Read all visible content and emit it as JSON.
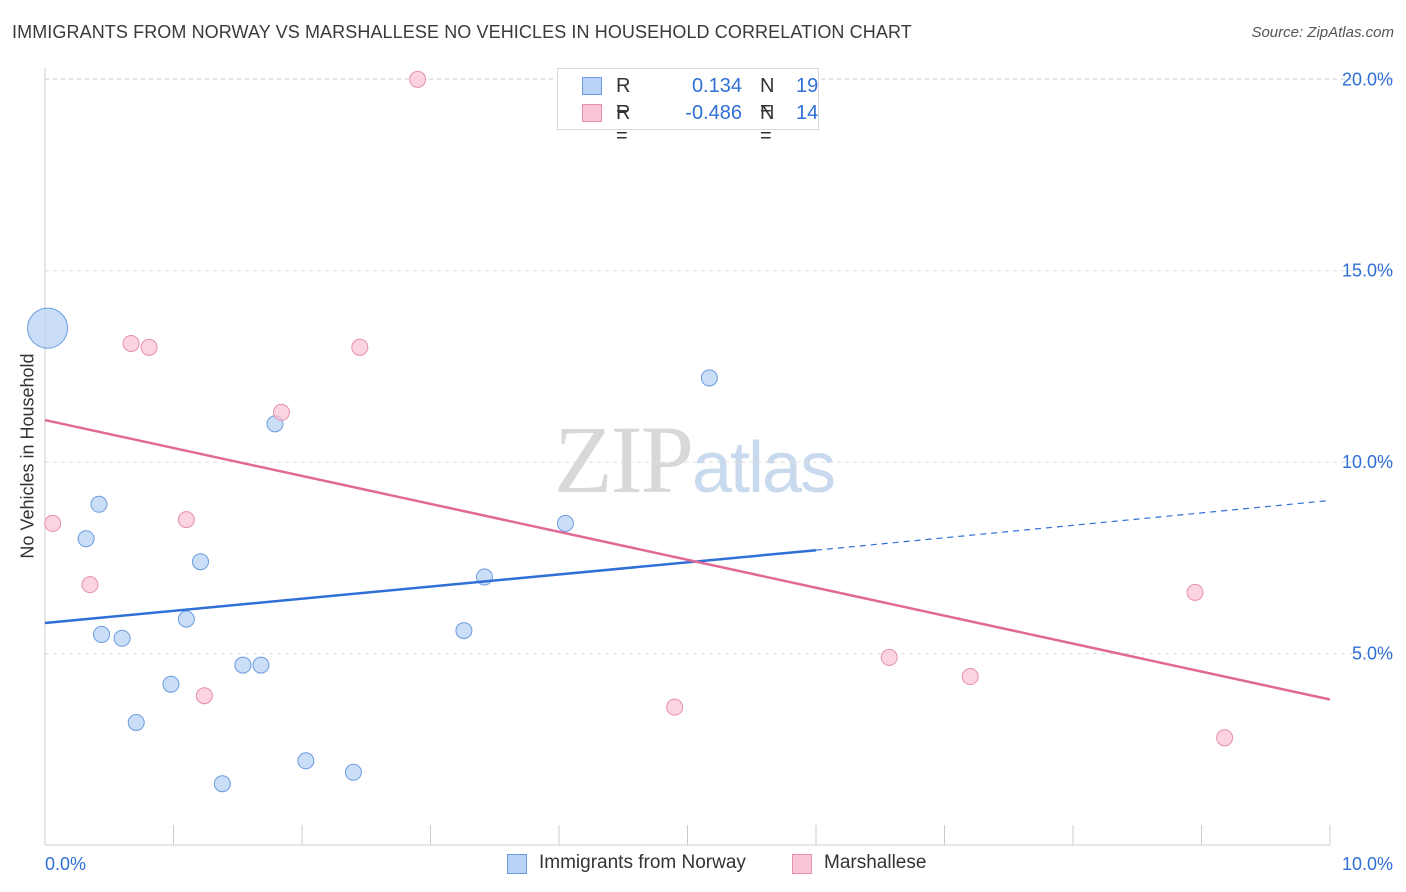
{
  "header": {
    "title": "IMMIGRANTS FROM NORWAY VS MARSHALLESE NO VEHICLES IN HOUSEHOLD CORRELATION CHART",
    "source": "Source: ZipAtlas.com"
  },
  "watermark": {
    "zip": "ZIP",
    "atlas": "atlas"
  },
  "legend": {
    "rows": [
      {
        "r_label": "R =",
        "r_value": "0.134",
        "n_label": "N =",
        "n_value": "19",
        "color": "#b8d3f5",
        "border": "#6a9be0"
      },
      {
        "r_label": "R =",
        "r_value": "-0.486",
        "n_label": "N =",
        "n_value": "14",
        "color": "#f9c6d5",
        "border": "#e78fab"
      }
    ]
  },
  "colors": {
    "norway_fill": "#b8d3f5",
    "norway_stroke": "#6a9be0",
    "norway_line": "#2f6fd6",
    "marsh_fill": "#f9c6d5",
    "marsh_stroke": "#e78fab",
    "marsh_line": "#e06a95",
    "tick_label": "#2f6fd6",
    "grid": "#dddddd"
  },
  "chart_data": {
    "type": "scatter",
    "title": "IMMIGRANTS FROM NORWAY VS MARSHALLESE NO VEHICLES IN HOUSEHOLD CORRELATION CHART",
    "xlabel": "",
    "ylabel": "No Vehicles in Household",
    "xlim": [
      0,
      10
    ],
    "ylim": [
      0,
      20.4
    ],
    "x_tick_labels": [
      "0.0%",
      "10.0%"
    ],
    "x_minor_ticks": [
      0,
      1,
      2,
      3,
      4,
      5,
      6,
      7,
      8,
      9,
      10
    ],
    "y_ticks": [
      5,
      10,
      15,
      20
    ],
    "y_tick_labels": [
      "5.0%",
      "10.0%",
      "15.0%",
      "20.0%"
    ],
    "grid": true,
    "legend_position": "top-center",
    "series": [
      {
        "name": "Immigrants from Norway",
        "points": [
          {
            "x": 0.02,
            "y": 13.5,
            "large": true
          },
          {
            "x": 0.32,
            "y": 8.0
          },
          {
            "x": 0.42,
            "y": 8.9
          },
          {
            "x": 0.44,
            "y": 5.5
          },
          {
            "x": 0.6,
            "y": 5.4
          },
          {
            "x": 0.71,
            "y": 3.2
          },
          {
            "x": 0.98,
            "y": 4.2
          },
          {
            "x": 1.1,
            "y": 5.9
          },
          {
            "x": 1.21,
            "y": 7.4
          },
          {
            "x": 1.38,
            "y": 1.6
          },
          {
            "x": 1.54,
            "y": 4.7
          },
          {
            "x": 1.68,
            "y": 4.7
          },
          {
            "x": 1.79,
            "y": 11.0
          },
          {
            "x": 2.03,
            "y": 2.2
          },
          {
            "x": 2.4,
            "y": 1.9
          },
          {
            "x": 3.26,
            "y": 5.6
          },
          {
            "x": 3.42,
            "y": 7.0
          },
          {
            "x": 4.05,
            "y": 8.4
          },
          {
            "x": 5.17,
            "y": 12.2
          }
        ],
        "trend": {
          "x0": 0,
          "y0": 5.8,
          "x1": 6.0,
          "y1": 7.7,
          "x_dash_end": 10.0,
          "y_dash_end": 9.0
        }
      },
      {
        "name": "Marshallese",
        "points": [
          {
            "x": 0.06,
            "y": 8.4
          },
          {
            "x": 0.35,
            "y": 6.8
          },
          {
            "x": 0.67,
            "y": 13.1
          },
          {
            "x": 0.81,
            "y": 13.0
          },
          {
            "x": 1.1,
            "y": 8.5
          },
          {
            "x": 1.24,
            "y": 3.9
          },
          {
            "x": 1.84,
            "y": 11.3
          },
          {
            "x": 2.45,
            "y": 13.0
          },
          {
            "x": 2.9,
            "y": 20.0
          },
          {
            "x": 4.9,
            "y": 3.6
          },
          {
            "x": 6.57,
            "y": 4.9
          },
          {
            "x": 7.2,
            "y": 4.4
          },
          {
            "x": 8.95,
            "y": 6.6
          },
          {
            "x": 9.18,
            "y": 2.8
          }
        ],
        "trend": {
          "x0": 0,
          "y0": 11.1,
          "x1": 10.0,
          "y1": 3.8
        }
      }
    ]
  },
  "bottom_legend": {
    "items": [
      {
        "label": "Immigrants from Norway"
      },
      {
        "label": "Marshallese"
      }
    ]
  }
}
